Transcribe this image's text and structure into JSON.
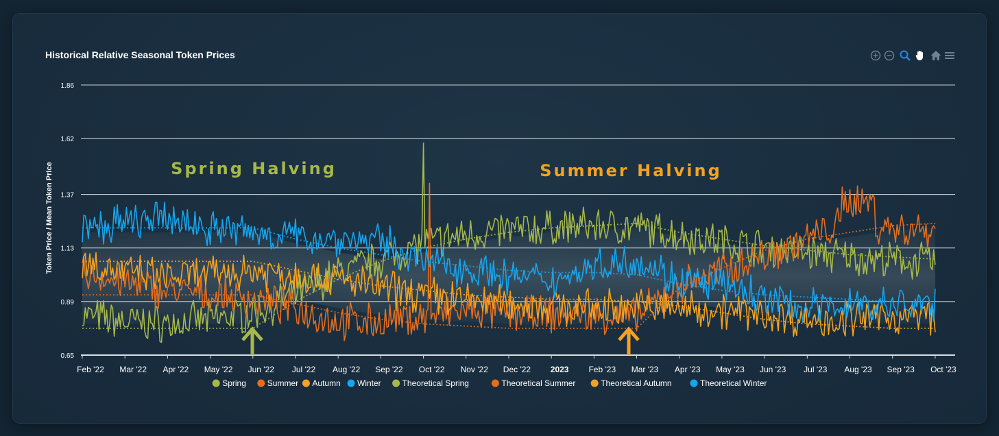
{
  "colors": {
    "spring": "#a6b84a",
    "summer": "#e46e1e",
    "autumn": "#f4a21f",
    "winter": "#17a5ee",
    "grid": "#c7ced4",
    "text": "#ffffff"
  },
  "chart_data": {
    "type": "line",
    "title": "Historical Relative Seasonal Token Prices",
    "ylabel": "Token Price / Mean Token Price",
    "xlabel": "",
    "ylim": [
      0.65,
      1.86
    ],
    "yticks": [
      "1.86",
      "1.62",
      "1.37",
      "1.13",
      "0.89",
      "0.65"
    ],
    "xticks": [
      "Feb '22",
      "Mar '22",
      "Apr '22",
      "May '22",
      "Jun '22",
      "Jul '22",
      "Aug '22",
      "Sep '22",
      "Oct '22",
      "Nov '22",
      "Dec '22",
      "2023",
      "Feb '23",
      "Mar '23",
      "Apr '23",
      "May '23",
      "Jun '23",
      "Jul '23",
      "Aug '23",
      "Sep '23",
      "Oct '23"
    ],
    "legend_position": "bottom",
    "grid": true,
    "annotations": [
      "Spring Halving",
      "Summer Halving"
    ],
    "series": [
      {
        "name": "Spring",
        "color": "#a6b84a",
        "x": [
          "Feb '22",
          "Mar '22",
          "Apr '22",
          "May '22",
          "Jun '22",
          "Jul '22",
          "Aug '22",
          "Sep '22",
          "Oct '22",
          "Nov '22",
          "Dec '22",
          "2023",
          "Feb '23",
          "Mar '23",
          "Apr '23",
          "May '23",
          "Jun '23",
          "Jul '23",
          "Aug '23",
          "Sep '23",
          "Oct '23"
        ],
        "values": [
          0.83,
          0.8,
          0.79,
          0.81,
          0.84,
          0.92,
          1.02,
          1.08,
          1.15,
          1.19,
          1.21,
          1.22,
          1.23,
          1.22,
          1.19,
          1.16,
          1.13,
          1.11,
          1.09,
          1.07,
          1.07
        ]
      },
      {
        "name": "Summer",
        "color": "#e46e1e",
        "x": [
          "Feb '22",
          "Mar '22",
          "Apr '22",
          "May '22",
          "Jun '22",
          "Jul '22",
          "Aug '22",
          "Sep '22",
          "Oct '22",
          "Nov '22",
          "Dec '22",
          "2023",
          "Feb '23",
          "Mar '23",
          "Apr '23",
          "May '23",
          "Jun '23",
          "Jul '23",
          "Aug '23",
          "Sep '23",
          "Oct '23"
        ],
        "values": [
          1.02,
          0.97,
          0.94,
          0.92,
          0.9,
          0.86,
          0.8,
          0.8,
          0.82,
          0.85,
          0.84,
          0.83,
          0.83,
          0.82,
          0.96,
          1.03,
          1.1,
          1.17,
          1.25,
          1.22,
          1.21
        ]
      },
      {
        "name": "Autumn",
        "color": "#f4a21f",
        "x": [
          "Feb '22",
          "Mar '22",
          "Apr '22",
          "May '22",
          "Jun '22",
          "Jul '22",
          "Aug '22",
          "Sep '22",
          "Oct '22",
          "Nov '22",
          "Dec '22",
          "2023",
          "Feb '23",
          "Mar '23",
          "Apr '23",
          "May '23",
          "Jun '23",
          "Jul '23",
          "Aug '23",
          "Sep '23",
          "Oct '23"
        ],
        "values": [
          1.07,
          1.02,
          1.0,
          1.01,
          1.03,
          1.01,
          0.99,
          0.95,
          0.92,
          0.9,
          0.88,
          0.87,
          0.86,
          0.87,
          0.86,
          0.85,
          0.83,
          0.81,
          0.81,
          0.82,
          0.83
        ]
      },
      {
        "name": "Winter",
        "color": "#17a5ee",
        "x": [
          "Feb '22",
          "Mar '22",
          "Apr '22",
          "May '22",
          "Jun '22",
          "Jul '22",
          "Aug '22",
          "Sep '22",
          "Oct '22",
          "Nov '22",
          "Dec '22",
          "2023",
          "Feb '23",
          "Mar '23",
          "Apr '23",
          "May '23",
          "Jun '23",
          "Jul '23",
          "Aug '23",
          "Sep '23",
          "Oct '23"
        ],
        "values": [
          1.21,
          1.24,
          1.26,
          1.22,
          1.2,
          1.18,
          1.17,
          1.16,
          1.07,
          1.04,
          1.0,
          0.98,
          1.05,
          1.08,
          0.98,
          0.96,
          0.9,
          0.86,
          0.88,
          0.87,
          0.88
        ]
      },
      {
        "name": "Theoretical Spring",
        "color": "#a6b84a",
        "dashed": true,
        "x": [
          "Feb '22",
          "Mar '22",
          "Apr '22",
          "May '22",
          "Jun '22",
          "Jul '22",
          "Aug '22",
          "Sep '22",
          "Oct '22",
          "Nov '22",
          "Dec '22",
          "2023",
          "Feb '23",
          "Mar '23",
          "Apr '23",
          "May '23",
          "Jun '23",
          "Jul '23",
          "Aug '23",
          "Sep '23",
          "Oct '23"
        ],
        "values": [
          0.77,
          0.77,
          0.77,
          0.77,
          0.77,
          0.89,
          0.99,
          1.07,
          1.13,
          1.17,
          1.2,
          1.22,
          1.23,
          1.24,
          1.2,
          1.17,
          1.14,
          1.12,
          1.1,
          1.09,
          1.08
        ]
      },
      {
        "name": "Theoretical Summer",
        "color": "#e46e1e",
        "dashed": true,
        "x": [
          "Feb '22",
          "Mar '22",
          "Apr '22",
          "May '22",
          "Jun '22",
          "Jul '22",
          "Aug '22",
          "Sep '22",
          "Oct '22",
          "Nov '22",
          "Dec '22",
          "2023",
          "Feb '23",
          "Mar '23",
          "Apr '23",
          "May '23",
          "Jun '23",
          "Jul '23",
          "Aug '23",
          "Sep '23",
          "Oct '23"
        ],
        "values": [
          0.92,
          0.92,
          0.92,
          0.92,
          0.92,
          0.88,
          0.84,
          0.81,
          0.79,
          0.78,
          0.77,
          0.77,
          0.77,
          0.77,
          0.95,
          1.04,
          1.12,
          1.17,
          1.2,
          1.23,
          1.24
        ]
      },
      {
        "name": "Theoretical Autumn",
        "color": "#f4a21f",
        "dashed": true,
        "x": [
          "Feb '22",
          "Mar '22",
          "Apr '22",
          "May '22",
          "Jun '22",
          "Jul '22",
          "Aug '22",
          "Sep '22",
          "Oct '22",
          "Nov '22",
          "Dec '22",
          "2023",
          "Feb '23",
          "Mar '23",
          "Apr '23",
          "May '23",
          "Jun '23",
          "Jul '23",
          "Aug '23",
          "Sep '23",
          "Oct '23"
        ],
        "values": [
          1.07,
          1.07,
          1.07,
          1.07,
          1.07,
          1.03,
          0.99,
          0.96,
          0.94,
          0.92,
          0.91,
          0.9,
          0.9,
          0.89,
          0.87,
          0.84,
          0.81,
          0.79,
          0.78,
          0.77,
          0.77
        ]
      },
      {
        "name": "Theoretical Winter",
        "color": "#17a5ee",
        "dashed": true,
        "x": [
          "Feb '22",
          "Mar '22",
          "Apr '22",
          "May '22",
          "Jun '22",
          "Jul '22",
          "Aug '22",
          "Sep '22",
          "Oct '22",
          "Nov '22",
          "Dec '22",
          "2023",
          "Feb '23",
          "Mar '23",
          "Apr '23",
          "May '23",
          "Jun '23",
          "Jul '23",
          "Aug '23",
          "Sep '23",
          "Oct '23"
        ],
        "values": [
          1.22,
          1.22,
          1.22,
          1.22,
          1.22,
          1.17,
          1.13,
          1.1,
          1.07,
          1.05,
          1.03,
          1.02,
          1.02,
          1.01,
          0.97,
          0.94,
          0.92,
          0.91,
          0.9,
          0.89,
          0.89
        ]
      }
    ]
  },
  "toolbar": {
    "zoom_in": "zoom-in-icon",
    "zoom_out": "zoom-out-icon",
    "zoom_select": "magnifier-icon",
    "pan": "hand-icon",
    "reset": "home-icon",
    "menu": "menu-icon"
  }
}
